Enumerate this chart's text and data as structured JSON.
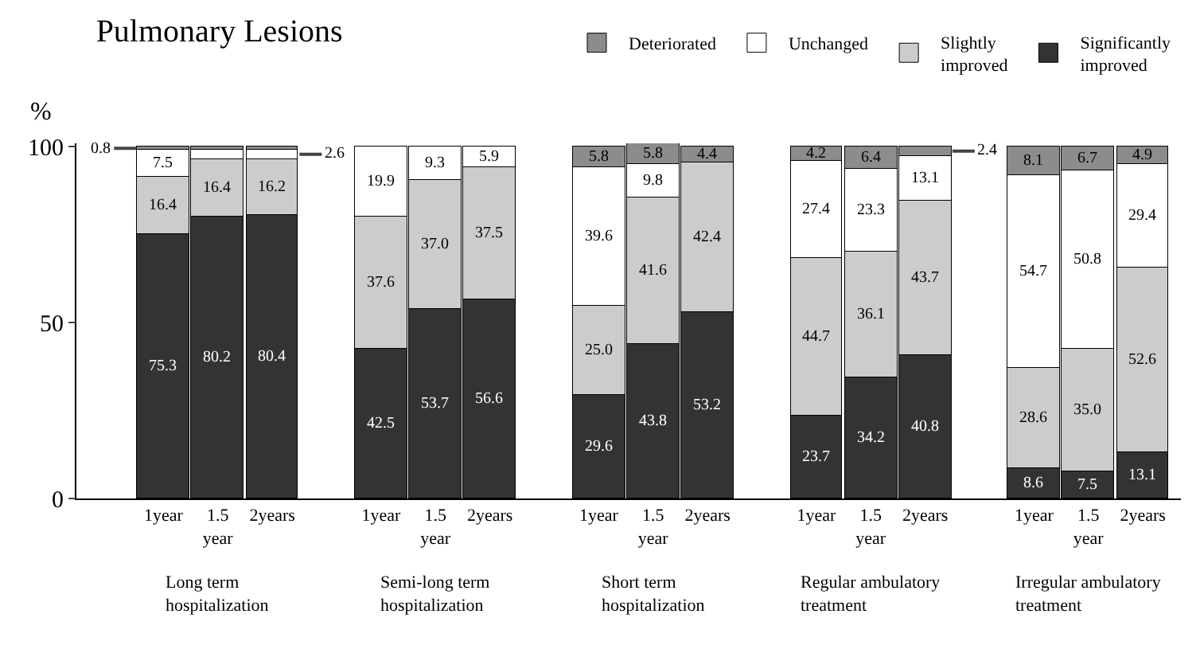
{
  "chart_data": {
    "type": "bar",
    "stacked": true,
    "title": "Pulmonary Lesions",
    "ylabel": "%",
    "categories": [
      "1year",
      "1.5\nyear",
      "2years",
      "1year",
      "1.5\nyear",
      "2years",
      "1year",
      "1.5\nyear",
      "2years",
      "1year",
      "1.5\nyear",
      "2years",
      "1year",
      "1.5\nyear",
      "2years"
    ],
    "annotations": [
      "Long term\nhospitalization",
      "Semi-long term\nhospitalization",
      "Short term\nhospitalization",
      "Regular ambulatory\ntreatment",
      "Irregular ambulatory\ntreatment"
    ],
    "series": [
      {
        "name": "Significantly\nimproved",
        "color": "#333333",
        "values": [
          75.3,
          80.2,
          80.4,
          42.5,
          53.7,
          56.6,
          29.6,
          43.8,
          53.2,
          23.7,
          34.2,
          40.8,
          8.6,
          7.5,
          13.1
        ],
        "value_labels": [
          "75.3",
          "80.2",
          "80.4",
          "42.5",
          "53.7",
          "56.6",
          "29.6",
          "43.8",
          "53.2",
          "23.7",
          "34.2",
          "40.8",
          "8.6",
          "7.5",
          "13.1"
        ]
      },
      {
        "name": "Slightly\nimproved",
        "color": "#cccccc",
        "values": [
          16.4,
          16.4,
          16.2,
          37.6,
          37.0,
          37.5,
          25.0,
          41.6,
          42.4,
          44.7,
          36.1,
          43.7,
          28.6,
          35.0,
          52.6
        ],
        "value_labels": [
          "16.4",
          "16.4",
          "16.2",
          "37.6",
          "37.0",
          "37.5",
          "25.0",
          "41.6",
          "42.4",
          "44.7",
          "36.1",
          "43.7",
          "28.6",
          "35.0",
          "52.6"
        ]
      },
      {
        "name": "Unchanged",
        "color": "#ffffff",
        "values": [
          7.5,
          2.4,
          2.6,
          19.9,
          9.3,
          5.9,
          39.6,
          9.8,
          null,
          27.4,
          23.3,
          13.1,
          54.7,
          50.8,
          29.4
        ],
        "value_labels": [
          "7.5",
          null,
          "2.6",
          "19.9",
          "9.3",
          "5.9",
          "39.6",
          "9.8",
          null,
          "27.4",
          "23.3",
          "13.1",
          "54.7",
          "50.8",
          "29.4"
        ]
      },
      {
        "name": "Deteriorated",
        "color": "#8c8c8c",
        "values": [
          0.8,
          1.0,
          0.8,
          null,
          null,
          null,
          5.8,
          5.8,
          4.4,
          4.2,
          6.4,
          2.4,
          8.1,
          6.7,
          4.9
        ],
        "value_labels": [
          "0.8",
          null,
          null,
          null,
          null,
          null,
          "5.8",
          "5.8",
          "4.4",
          "4.2",
          "6.4",
          "2.4",
          "8.1",
          "6.7",
          "4.9"
        ]
      }
    ],
    "ylim": [
      0,
      101
    ],
    "yticks": [
      0,
      50,
      100
    ],
    "grid": false,
    "legend": "top right"
  }
}
